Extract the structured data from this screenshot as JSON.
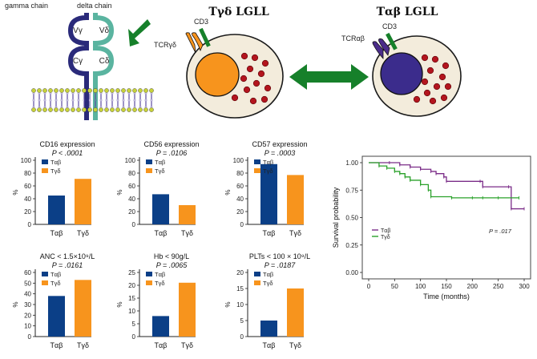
{
  "schematic": {
    "gamma_chain": "gamma chain",
    "delta_chain": "delta chain",
    "v_gamma": "Vγ",
    "v_delta": "Vδ",
    "c_gamma": "Cγ",
    "c_delta": "Cδ",
    "title_left": "Tγδ LGLL",
    "title_right": "Tαβ LGLL",
    "cd3_left": "CD3",
    "tcr_left": "TCRγδ",
    "cd3_right": "CD3",
    "tcr_right": "TCRαβ"
  },
  "colors": {
    "tab": "#0b3f87",
    "tgd": "#f7941d",
    "green": "#16802a",
    "purple": "#7b2c88",
    "km_green": "#2aa12a",
    "nucleus_right": "#3b2c8c",
    "teal": "#5ab4a0",
    "navy_chain": "#2a2a7a"
  },
  "chart_data": [
    {
      "type": "bar",
      "title": "CD16 expression",
      "subtitle": "P < .0001",
      "categories": [
        "Tαβ",
        "Tγδ"
      ],
      "values": [
        45,
        71
      ],
      "ylabel": "%",
      "ylim": [
        0,
        100
      ],
      "yticks": [
        0,
        20,
        40,
        60,
        80,
        100
      ],
      "legend": [
        "Tαβ",
        "Tγδ"
      ]
    },
    {
      "type": "bar",
      "title": "CD56 expression",
      "subtitle": "P = .0106",
      "categories": [
        "Tαβ",
        "Tγδ"
      ],
      "values": [
        47,
        30
      ],
      "ylabel": "%",
      "ylim": [
        0,
        100
      ],
      "yticks": [
        0,
        20,
        40,
        60,
        80,
        100
      ],
      "legend": [
        "Tαβ",
        "Tγδ"
      ]
    },
    {
      "type": "bar",
      "title": "CD57 expression",
      "subtitle": "P = .0003",
      "categories": [
        "Tαβ",
        "Tγδ"
      ],
      "values": [
        94,
        77
      ],
      "ylabel": "%",
      "ylim": [
        0,
        100
      ],
      "yticks": [
        0,
        20,
        40,
        60,
        80,
        100
      ],
      "legend": [
        "Tαβ",
        "Tγδ"
      ]
    },
    {
      "type": "bar",
      "title": "ANC < 1.5×10⁹/L",
      "subtitle": "P = .0161",
      "categories": [
        "Tαβ",
        "Tγδ"
      ],
      "values": [
        38,
        53
      ],
      "ylabel": "%",
      "ylim": [
        0,
        60
      ],
      "yticks": [
        0,
        10,
        20,
        30,
        40,
        50,
        60
      ],
      "legend": [
        "Tαβ",
        "Tγδ"
      ]
    },
    {
      "type": "bar",
      "title": "Hb < 90g/L",
      "subtitle": "P = .0065",
      "categories": [
        "Tαβ",
        "Tγδ"
      ],
      "values": [
        8,
        21
      ],
      "ylabel": "%",
      "ylim": [
        0,
        25
      ],
      "yticks": [
        0,
        5,
        10,
        15,
        20,
        25
      ],
      "legend": [
        "Tαβ",
        "Tγδ"
      ]
    },
    {
      "type": "bar",
      "title": "PLTs < 100 × 10⁹/L",
      "subtitle": "P = .0187",
      "categories": [
        "Tαβ",
        "Tγδ"
      ],
      "values": [
        5,
        15
      ],
      "ylabel": "%",
      "ylim": [
        0,
        20
      ],
      "yticks": [
        0,
        5,
        10,
        15,
        20
      ],
      "legend": [
        "Tαβ",
        "Tγδ"
      ]
    },
    {
      "type": "line",
      "title": "",
      "xlabel": "Time (months)",
      "ylabel": "Survival probability",
      "xlim": [
        0,
        300
      ],
      "ylim": [
        0,
        1
      ],
      "xticks": [
        0,
        50,
        100,
        150,
        200,
        250,
        300
      ],
      "yticks": [
        "0.00",
        "0.25",
        "0.50",
        "0.75",
        "1.00"
      ],
      "annotation": "P = .017",
      "legend": [
        "Tαβ",
        "Tγδ"
      ],
      "series": [
        {
          "name": "Tαβ",
          "x": [
            0,
            40,
            60,
            80,
            100,
            120,
            130,
            145,
            150,
            215,
            220,
            270,
            275,
            300
          ],
          "y": [
            1.0,
            1.0,
            0.98,
            0.96,
            0.94,
            0.92,
            0.9,
            0.87,
            0.83,
            0.83,
            0.78,
            0.78,
            0.58,
            0.58
          ]
        },
        {
          "name": "Tγδ",
          "x": [
            0,
            20,
            35,
            50,
            60,
            70,
            80,
            100,
            115,
            120,
            160,
            200,
            220,
            250,
            290
          ],
          "y": [
            1.0,
            0.97,
            0.95,
            0.92,
            0.9,
            0.87,
            0.84,
            0.8,
            0.75,
            0.69,
            0.68,
            0.68,
            0.68,
            0.68,
            0.68
          ]
        }
      ]
    }
  ]
}
